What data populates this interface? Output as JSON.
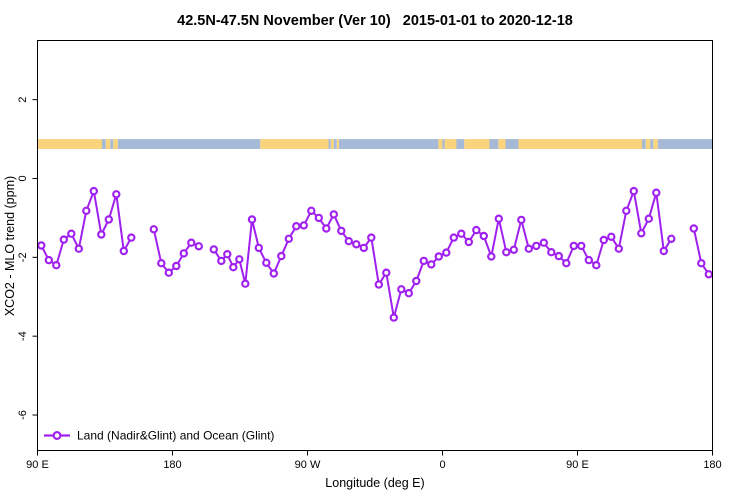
{
  "title": "42.5N-47.5N November (Ver 10)   2015-01-01 to 2020-12-18",
  "legend": {
    "label": "Land (Nadir&Glint) and Ocean (Glint)"
  },
  "colors": {
    "series": "#A020F0",
    "marker_fill": "#FFFFFF",
    "land": "#FAD47C",
    "ocean": "#A6BAD8",
    "axis": "#000000",
    "background": "#FFFFFF"
  },
  "chart_data": {
    "type": "line",
    "title": "42.5N-47.5N November (Ver 10)   2015-01-01 to 2020-12-18",
    "xlabel": "Longitude (deg E)",
    "ylabel": "XCO2 - MLO trend (ppm)",
    "xlim": [
      90,
      540
    ],
    "ylim": [
      -6.9,
      3.5
    ],
    "grid": false,
    "legend_position": "bottom-left-inside",
    "x_ticks": [
      {
        "value": 90,
        "label": "90 E"
      },
      {
        "value": 180,
        "label": "180"
      },
      {
        "value": 270,
        "label": "90 W"
      },
      {
        "value": 360,
        "label": "0"
      },
      {
        "value": 450,
        "label": "90 E"
      },
      {
        "value": 540,
        "label": "180"
      }
    ],
    "y_ticks": [
      {
        "value": 2,
        "label": "2"
      },
      {
        "value": 0,
        "label": "0"
      },
      {
        "value": -2,
        "label": "-2"
      },
      {
        "value": -4,
        "label": "-4"
      },
      {
        "value": -6,
        "label": "-6"
      }
    ],
    "series": [
      {
        "name": "Land (Nadir&Glint) and Ocean (Glint)",
        "marker": "open-circle",
        "segments": [
          [
            [
              92.5,
              -1.7
            ],
            [
              97.5,
              -2.07
            ],
            [
              102.5,
              -2.2
            ],
            [
              107.5,
              -1.55
            ],
            [
              112.5,
              -1.4
            ],
            [
              117.5,
              -1.78
            ],
            [
              122.5,
              -0.82
            ],
            [
              127.5,
              -0.32
            ],
            [
              132.5,
              -1.42
            ],
            [
              137.5,
              -1.04
            ],
            [
              142.5,
              -0.4
            ],
            [
              147.5,
              -1.84
            ],
            [
              152.5,
              -1.5
            ]
          ],
          [
            [
              167.5,
              -1.29
            ],
            [
              172.5,
              -2.15
            ],
            [
              177.5,
              -2.39
            ],
            [
              182.5,
              -2.22
            ],
            [
              187.5,
              -1.9
            ],
            [
              192.5,
              -1.63
            ],
            [
              197.5,
              -1.72
            ]
          ],
          [
            [
              207.5,
              -1.8
            ],
            [
              212.5,
              -2.09
            ],
            [
              216.5,
              -1.92
            ],
            [
              220.5,
              -2.25
            ],
            [
              224.5,
              -2.05
            ],
            [
              228.5,
              -2.67
            ],
            [
              233.0,
              -1.04
            ],
            [
              237.5,
              -1.76
            ],
            [
              242.5,
              -2.14
            ],
            [
              247.5,
              -2.41
            ],
            [
              252.5,
              -1.97
            ],
            [
              257.5,
              -1.53
            ],
            [
              262.5,
              -1.21
            ],
            [
              267.5,
              -1.19
            ],
            [
              272.5,
              -0.82
            ],
            [
              277.5,
              -1.0
            ],
            [
              282.5,
              -1.27
            ],
            [
              287.5,
              -0.91
            ],
            [
              292.5,
              -1.33
            ],
            [
              297.5,
              -1.59
            ],
            [
              302.5,
              -1.67
            ],
            [
              307.5,
              -1.76
            ],
            [
              312.5,
              -1.5
            ],
            [
              317.5,
              -2.69
            ],
            [
              322.5,
              -2.39
            ],
            [
              327.5,
              -3.53
            ],
            [
              332.5,
              -2.81
            ],
            [
              337.5,
              -2.91
            ],
            [
              342.5,
              -2.6
            ],
            [
              347.5,
              -2.09
            ],
            [
              352.5,
              -2.18
            ],
            [
              357.5,
              -1.98
            ],
            [
              362.5,
              -1.88
            ],
            [
              367.5,
              -1.5
            ],
            [
              372.5,
              -1.4
            ],
            [
              377.5,
              -1.61
            ],
            [
              382.5,
              -1.31
            ],
            [
              387.5,
              -1.46
            ],
            [
              392.5,
              -1.98
            ],
            [
              397.5,
              -1.02
            ],
            [
              402.5,
              -1.87
            ],
            [
              407.5,
              -1.81
            ],
            [
              412.5,
              -1.05
            ],
            [
              417.5,
              -1.78
            ],
            [
              422.5,
              -1.71
            ],
            [
              427.5,
              -1.63
            ],
            [
              432.5,
              -1.87
            ],
            [
              437.5,
              -1.97
            ],
            [
              442.5,
              -2.15
            ],
            [
              447.5,
              -1.71
            ],
            [
              452.5,
              -1.71
            ],
            [
              457.5,
              -2.07
            ],
            [
              462.5,
              -2.2
            ],
            [
              467.5,
              -1.56
            ],
            [
              472.5,
              -1.48
            ],
            [
              477.5,
              -1.78
            ],
            [
              482.5,
              -0.82
            ],
            [
              487.5,
              -0.32
            ],
            [
              492.5,
              -1.39
            ],
            [
              497.5,
              -1.02
            ],
            [
              502.5,
              -0.36
            ],
            [
              507.5,
              -1.84
            ],
            [
              512.5,
              -1.53
            ]
          ],
          [
            [
              527.5,
              -1.27
            ],
            [
              532.5,
              -2.15
            ],
            [
              537.5,
              -2.43
            ]
          ]
        ]
      }
    ],
    "map_strip": {
      "description": "land/ocean strip for latitude band 42.5N-47.5N",
      "value_range": [
        0.75,
        1.0
      ],
      "segments": [
        [
          90,
          133,
          "land"
        ],
        [
          133,
          135.5,
          "ocean"
        ],
        [
          135.5,
          138.5,
          "land"
        ],
        [
          138.5,
          140.5,
          "ocean"
        ],
        [
          140.5,
          143.5,
          "land"
        ],
        [
          143.5,
          238.5,
          "ocean"
        ],
        [
          238.5,
          284,
          "land"
        ],
        [
          284,
          285.5,
          "ocean"
        ],
        [
          285.5,
          287.5,
          "land"
        ],
        [
          287.5,
          289.5,
          "ocean"
        ],
        [
          289.5,
          291,
          "land"
        ],
        [
          291,
          357.3,
          "ocean"
        ],
        [
          357.3,
          360,
          "land"
        ],
        [
          360,
          361.5,
          "ocean"
        ],
        [
          361.5,
          369.3,
          "land"
        ],
        [
          369.3,
          374.5,
          "ocean"
        ],
        [
          374.5,
          391.3,
          "land"
        ],
        [
          391.3,
          397.3,
          "ocean"
        ],
        [
          397.3,
          402,
          "land"
        ],
        [
          402,
          410.7,
          "ocean"
        ],
        [
          410.7,
          493,
          "land"
        ],
        [
          493,
          495.5,
          "ocean"
        ],
        [
          495.5,
          498.5,
          "land"
        ],
        [
          498.5,
          500.5,
          "ocean"
        ],
        [
          500.5,
          503.5,
          "land"
        ],
        [
          503.5,
          540,
          "ocean"
        ]
      ]
    }
  }
}
